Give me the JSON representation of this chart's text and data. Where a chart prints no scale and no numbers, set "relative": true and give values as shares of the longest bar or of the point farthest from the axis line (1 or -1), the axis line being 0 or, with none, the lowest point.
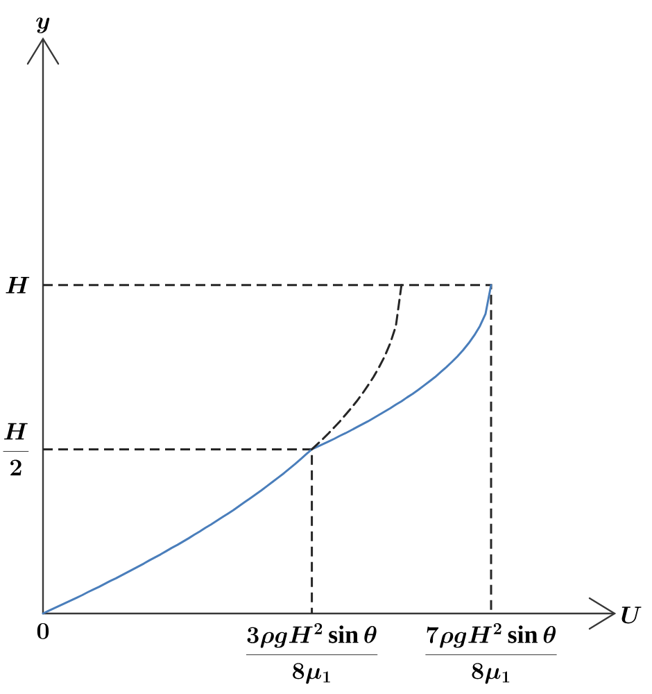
{
  "chart_data": {
    "type": "line",
    "relative": true,
    "xlabel": "U",
    "annotations": [
      "y"
    ],
    "categories": [
      "0",
      null,
      null,
      null,
      null,
      null,
      null,
      null,
      null,
      null,
      null,
      null,
      null,
      null,
      null,
      null,
      null,
      null,
      null,
      null,
      null,
      null,
      null,
      null,
      null,
      null,
      null,
      null,
      null,
      null,
      null,
      null,
      null,
      null,
      null,
      null,
      null,
      null,
      null,
      null,
      null,
      null,
      null,
      null,
      null,
      null,
      null,
      null,
      "\\frac{3\\rho gH^{2}\\sin\\theta}{8\\mu_{1}}",
      null,
      null,
      null,
      null,
      null,
      null,
      null,
      null,
      null,
      null,
      null,
      null,
      null,
      null,
      null,
      null,
      null,
      null,
      null,
      null,
      null,
      null,
      null,
      null,
      null,
      null,
      null,
      null,
      null,
      null,
      null,
      "\\frac{7\\rho gH^{2}\\sin\\theta}{8\\mu_{1}}"
    ],
    "ref_lines": [
      {
        "axis": "y",
        "value": 0.5,
        "label": "\\frac{H}{2}",
        "line_style": "dashed",
        "color": "#262626"
      },
      {
        "axis": "y",
        "value": 1,
        "label": "H",
        "line_style": "dashed",
        "color": "#262626"
      }
    ],
    "series": [
      {
        "color": "#4a7ebb",
        "values": [
          0,
          0.008,
          0.016,
          0.024,
          0.032,
          0.04,
          0.048,
          0.056,
          0.065,
          0.073,
          0.081,
          0.09,
          0.099,
          0.107,
          0.116,
          0.125,
          0.134,
          0.143,
          0.152,
          0.162,
          0.171,
          0.18,
          0.19,
          0.2,
          0.209,
          0.219,
          0.229,
          0.24,
          0.25,
          0.261,
          0.271,
          0.282,
          0.293,
          0.304,
          0.315,
          0.327,
          0.339,
          0.351,
          0.363,
          0.375,
          0.388,
          0.401,
          0.414,
          0.427,
          0.441,
          0.455,
          0.47,
          0.485,
          0.5,
          0.508,
          0.516,
          0.524,
          0.532,
          0.541,
          0.549,
          0.558,
          0.567,
          0.576,
          0.585,
          0.595,
          0.605,
          0.615,
          0.625,
          0.636,
          0.646,
          0.658,
          0.669,
          0.681,
          0.694,
          0.707,
          0.72,
          0.735,
          0.75,
          0.766,
          0.783,
          0.802,
          0.823,
          0.847,
          0.875,
          0.912,
          1
        ]
      },
      {
        "color": "#262626",
        "line_style": "dashed",
        "values": [
          null,
          null,
          null,
          null,
          null,
          null,
          null,
          null,
          null,
          null,
          null,
          null,
          null,
          null,
          null,
          null,
          null,
          null,
          null,
          null,
          null,
          null,
          null,
          null,
          null,
          null,
          null,
          null,
          null,
          null,
          null,
          null,
          null,
          null,
          null,
          null,
          null,
          null,
          null,
          null,
          null,
          null,
          null,
          null,
          null,
          null,
          null,
          null,
          0.5,
          0.516,
          0.532,
          0.549,
          0.567,
          0.585,
          0.605,
          0.625,
          0.646,
          0.669,
          0.694,
          0.72,
          0.75,
          0.783,
          0.823,
          0.875,
          1,
          null,
          null,
          null,
          null,
          null,
          null,
          null,
          null,
          null,
          null,
          null,
          null,
          null,
          null,
          null,
          null
        ]
      }
    ]
  }
}
